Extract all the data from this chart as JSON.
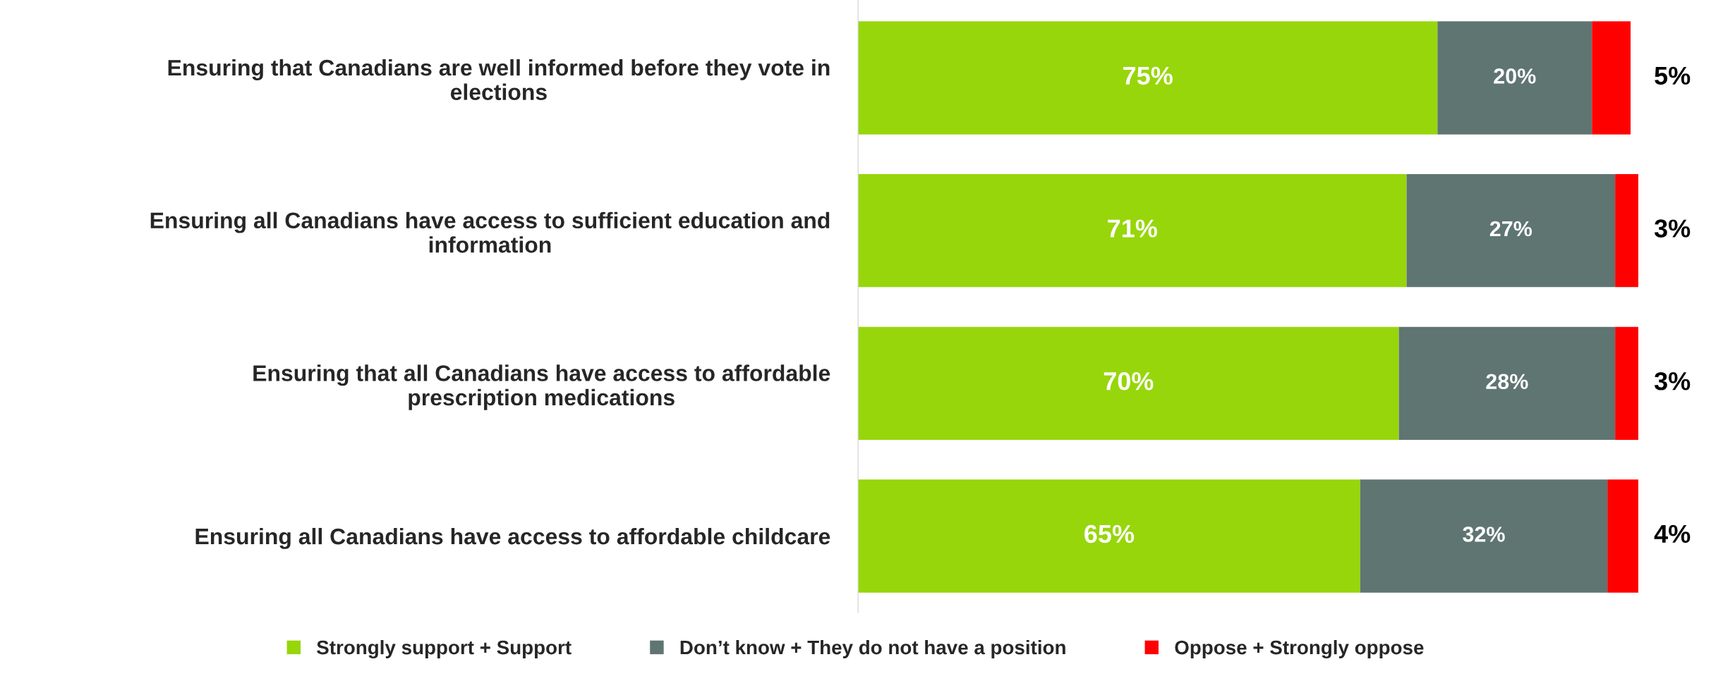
{
  "chart_data": {
    "type": "bar",
    "orientation": "horizontal",
    "stacked": true,
    "legend": "bottom",
    "grid": false,
    "categories": [
      "Ensuring that Canadians are well informed before they vote in elections",
      "Ensuring all Canadians have access to sufficient education and information",
      "Ensuring that all Canadians have access to affordable prescription medications",
      "Ensuring all Canadians have access to affordable childcare"
    ],
    "series": [
      {
        "name": "Strongly support + Support",
        "color": "#97d60b",
        "values": [
          75,
          71,
          70,
          65
        ],
        "value_labels": [
          "75%",
          "71%",
          "70%",
          "65%"
        ]
      },
      {
        "name": "Don’t know + They do not have a position",
        "color": "#5f7571",
        "values": [
          20,
          27,
          28,
          32
        ],
        "value_labels": [
          "20%",
          "27%",
          "28%",
          "32%"
        ]
      },
      {
        "name": "Oppose + Strongly oppose",
        "color": "#ff0000",
        "values": [
          5,
          3,
          3,
          4
        ],
        "value_labels": [
          "5%",
          "3%",
          "3%",
          "4%"
        ]
      }
    ]
  }
}
